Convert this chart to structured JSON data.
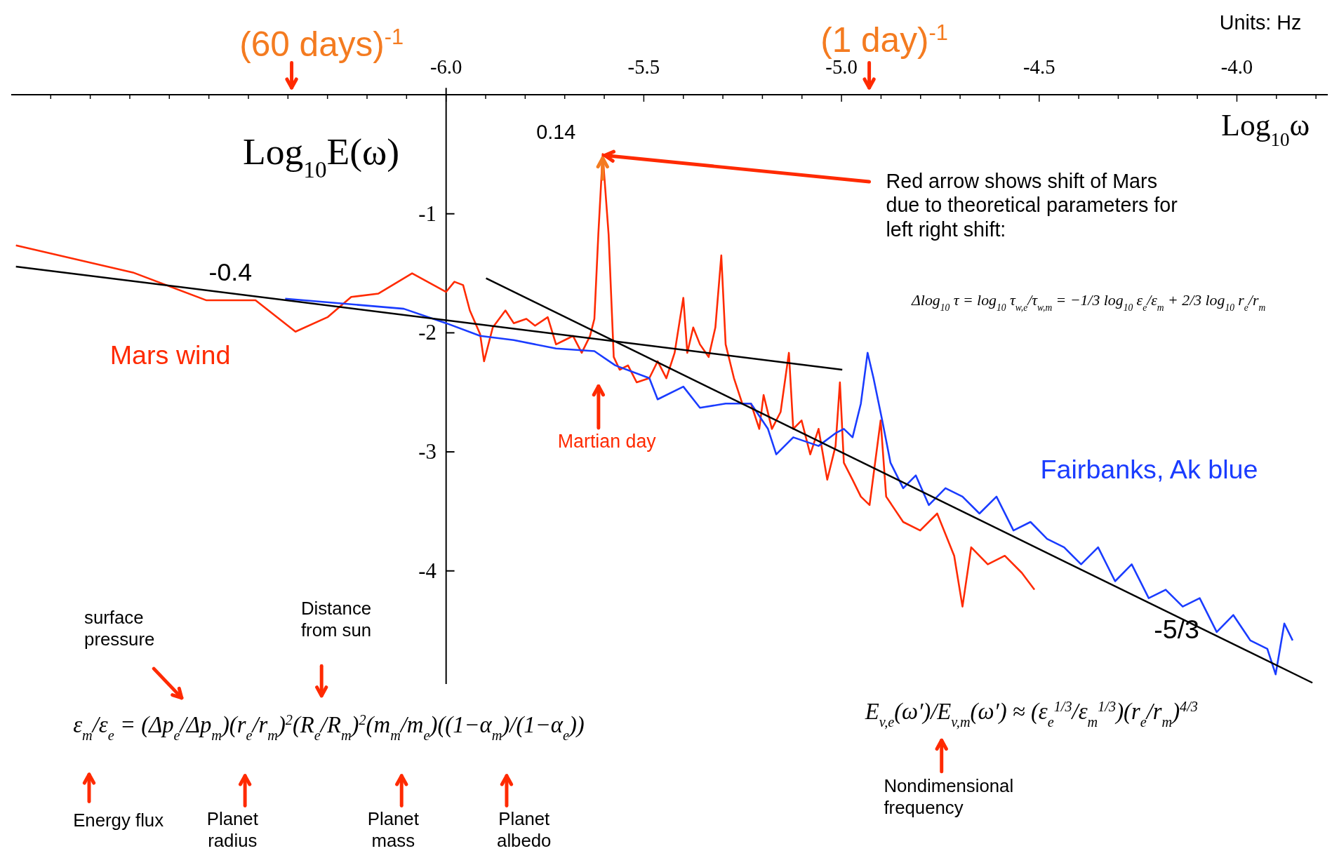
{
  "chart_data": {
    "type": "line",
    "xlabel": "Log$_{10}$ω",
    "ylabel": "Log$_{10}$E(ω)",
    "xlim": [
      -7.1,
      -3.77
    ],
    "ylim": [
      -4.95,
      0
    ],
    "xticks": [
      {
        "value": -7.0,
        "label": null
      },
      {
        "value": -6.9,
        "label": null
      },
      {
        "value": -6.8,
        "label": null
      },
      {
        "value": -6.7,
        "label": null
      },
      {
        "value": -6.6,
        "label": null
      },
      {
        "value": -6.5,
        "label": null
      },
      {
        "value": -6.4,
        "label": null
      },
      {
        "value": -6.3,
        "label": null
      },
      {
        "value": -6.2,
        "label": null
      },
      {
        "value": -6.1,
        "label": null
      },
      {
        "value": -6,
        "label": "-6.0"
      },
      {
        "value": -5.9,
        "label": null
      },
      {
        "value": -5.8,
        "label": null
      },
      {
        "value": -5.7,
        "label": null
      },
      {
        "value": -5.6,
        "label": null
      },
      {
        "value": -5.5,
        "label": "-5.5"
      },
      {
        "value": -5.4,
        "label": null
      },
      {
        "value": -5.3,
        "label": null
      },
      {
        "value": -5.2,
        "label": null
      },
      {
        "value": -5.1,
        "label": null
      },
      {
        "value": -5,
        "label": "-5.0"
      },
      {
        "value": -4.9,
        "label": null
      },
      {
        "value": -4.8,
        "label": null
      },
      {
        "value": -4.7,
        "label": null
      },
      {
        "value": -4.6,
        "label": null
      },
      {
        "value": -4.5,
        "label": "-4.5"
      },
      {
        "value": -4.4,
        "label": null
      },
      {
        "value": -4.3,
        "label": null
      },
      {
        "value": -4.2,
        "label": null
      },
      {
        "value": -4.1,
        "label": null
      },
      {
        "value": -4,
        "label": "-4.0"
      },
      {
        "value": -3.9,
        "label": null
      },
      {
        "value": -3.8,
        "label": null
      }
    ],
    "yticks": [
      -1,
      -2,
      -3,
      -4
    ],
    "series": [
      {
        "name": "Mars wind",
        "color": "#ff2a00",
        "x": [
          -7.088,
          -6.792,
          -6.606,
          -6.482,
          -6.381,
          -6.3,
          -6.24,
          -6.171,
          -6.086,
          -6.0,
          -5.979,
          -5.957,
          -5.94,
          -5.914,
          -5.904,
          -5.882,
          -5.85,
          -5.829,
          -5.797,
          -5.775,
          -5.743,
          -5.722,
          -5.7,
          -5.679,
          -5.657,
          -5.636,
          -5.625,
          -5.615,
          -5.604,
          -5.589,
          -5.576,
          -5.561,
          -5.54,
          -5.518,
          -5.486,
          -5.465,
          -5.443,
          -5.422,
          -5.4,
          -5.39,
          -5.375,
          -5.358,
          -5.336,
          -5.319,
          -5.304,
          -5.293,
          -5.272,
          -5.251,
          -5.229,
          -5.208,
          -5.197,
          -5.176,
          -5.154,
          -5.133,
          -5.122,
          -5.101,
          -5.079,
          -5.058,
          -5.036,
          -5.015,
          -5.004,
          -4.994,
          -4.972,
          -4.951,
          -4.929,
          -4.901,
          -4.887,
          -4.844,
          -4.801,
          -4.758,
          -4.715,
          -4.694,
          -4.672,
          -4.63,
          -4.587,
          -4.544,
          -4.512
        ],
        "values": [
          -1.265,
          -1.493,
          -1.727,
          -1.727,
          -1.99,
          -1.869,
          -1.699,
          -1.67,
          -1.5,
          -1.656,
          -1.571,
          -1.599,
          -1.812,
          -2.011,
          -2.239,
          -1.955,
          -1.812,
          -1.919,
          -1.883,
          -1.94,
          -1.869,
          -2.097,
          -2.061,
          -2.026,
          -2.168,
          -2.026,
          -1.883,
          -1.173,
          -0.498,
          -1.173,
          -2.203,
          -2.31,
          -2.274,
          -2.416,
          -2.381,
          -2.239,
          -2.381,
          -2.168,
          -1.706,
          -2.168,
          -1.955,
          -2.097,
          -2.203,
          -1.955,
          -1.35,
          -2.097,
          -2.381,
          -2.594,
          -2.594,
          -2.807,
          -2.523,
          -2.807,
          -2.665,
          -2.168,
          -2.807,
          -2.736,
          -3.021,
          -2.807,
          -3.234,
          -2.95,
          -2.416,
          -3.092,
          -3.234,
          -3.376,
          -3.447,
          -2.736,
          -3.376,
          -3.589,
          -3.66,
          -3.518,
          -3.873,
          -4.3,
          -3.802,
          -3.945,
          -3.873,
          -4.016,
          -4.158
        ]
      },
      {
        "name": "Fairbanks, Ak blue",
        "color": "#1a3cff",
        "x": [
          -6.407,
          -6.107,
          -6.0,
          -5.914,
          -5.829,
          -5.722,
          -5.625,
          -5.572,
          -5.486,
          -5.465,
          -5.4,
          -5.358,
          -5.293,
          -5.229,
          -5.186,
          -5.165,
          -5.122,
          -5.058,
          -5.015,
          -4.994,
          -4.972,
          -4.951,
          -4.934,
          -4.919,
          -4.897,
          -4.876,
          -4.844,
          -4.812,
          -4.779,
          -4.737,
          -4.694,
          -4.651,
          -4.608,
          -4.565,
          -4.522,
          -4.48,
          -4.437,
          -4.394,
          -4.351,
          -4.308,
          -4.266,
          -4.223,
          -4.18,
          -4.137,
          -4.094,
          -4.051,
          -4.009,
          -3.966,
          -3.923,
          -3.902,
          -3.88,
          -3.859
        ],
        "values": [
          -1.713,
          -1.798,
          -1.919,
          -2.026,
          -2.061,
          -2.132,
          -2.154,
          -2.274,
          -2.381,
          -2.559,
          -2.452,
          -2.63,
          -2.594,
          -2.594,
          -2.807,
          -3.021,
          -2.878,
          -2.95,
          -2.843,
          -2.807,
          -2.878,
          -2.594,
          -2.168,
          -2.381,
          -2.736,
          -3.092,
          -3.305,
          -3.198,
          -3.447,
          -3.305,
          -3.376,
          -3.518,
          -3.376,
          -3.66,
          -3.589,
          -3.731,
          -3.802,
          -3.945,
          -3.802,
          -4.087,
          -3.945,
          -4.229,
          -4.158,
          -4.3,
          -4.229,
          -4.513,
          -4.371,
          -4.584,
          -4.655,
          -4.869,
          -4.442,
          -4.584
        ]
      },
      {
        "name": "-0.4",
        "color": "#000000",
        "x": [
          -7.088,
          -4.998
        ],
        "values": [
          -1.443,
          -2.31
        ]
      },
      {
        "name": "-5/3",
        "color": "#000000",
        "x": [
          -5.899,
          -3.809
        ],
        "values": [
          -1.542,
          -4.94
        ]
      }
    ],
    "annotations": [
      "Units: Hz",
      "(60 days)$^{-1}$",
      "(1 day)$^{-1}$",
      {
        "text": "0.14",
        "x": -5.604,
        "y": -0.498
      },
      {
        "text": "Red arrow shows shift of Mars\ndue to theoretical parameters for\nleft right shift:",
        "x": -5.604,
        "y": -0.498
      },
      "Δlog$_{10}$ τ = log$_{10}$ τ$_{w,e}$/τ$_{w,m}$ = −1/3 log$_{10}$ ε$_{e}$/ε$_{m}$ + 2/3 log$_{10}$ r$_{e}$/r$_{m}$",
      "Martian day",
      "ε$_{m}$/ε$_{e}$ = (Δp$_{e}$/Δp$_{m}$)(r$_{e}$/r$_{m}$)$^{2}$(R$_{e}$/R$_{m}$)$^{2}$(m$_{m}$/m$_{e}$)((1−α$_{m}$)/(1−α$_{e}$))",
      "surface\npressure",
      "Distance\nfrom sun",
      "Energy flux",
      "Planet\nradius",
      "Planet\nmass",
      "Planet\nalbedo",
      "E$_{v,e}$(ω′)/E$_{v,m}$(ω′) ≈ (ε$_{e}$$^{1/3}$/ε$_{m}$$^{1/3}$)(r$_{e}$/r$_{m}$)$^{4/3}$",
      "Nondimensional\nfrequency"
    ]
  }
}
